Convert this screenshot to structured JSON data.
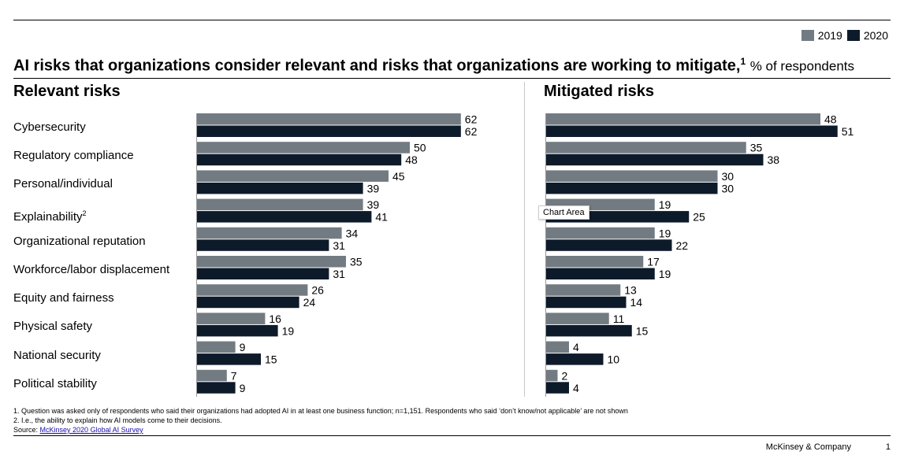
{
  "title": "AI risks that organizations consider relevant and risks that organizations are working to mitigate,",
  "title_sup": "1",
  "title_unit": "% of respondents",
  "legend": [
    {
      "label": "2019",
      "color": "#737b82"
    },
    {
      "label": "2020",
      "color": "#0d1a2a"
    }
  ],
  "panels": {
    "left": {
      "title": "Relevant risks"
    },
    "right": {
      "title": "Mitigated risks"
    }
  },
  "categories": [
    {
      "label": "Cybersecurity",
      "sup": ""
    },
    {
      "label": "Regulatory compliance",
      "sup": ""
    },
    {
      "label": "Personal/individual",
      "sup": ""
    },
    {
      "label": "Explainability",
      "sup": "2"
    },
    {
      "label": "Organizational reputation",
      "sup": ""
    },
    {
      "label": "Workforce/labor displacement",
      "sup": ""
    },
    {
      "label": "Equity and fairness",
      "sup": ""
    },
    {
      "label": "Physical safety",
      "sup": ""
    },
    {
      "label": "National security",
      "sup": ""
    },
    {
      "label": "Political stability",
      "sup": ""
    }
  ],
  "chart_data": [
    {
      "type": "bar",
      "orientation": "horizontal",
      "title": "Relevant risks",
      "categories": [
        "Cybersecurity",
        "Regulatory compliance",
        "Personal/individual",
        "Explainability",
        "Organizational reputation",
        "Workforce/labor displacement",
        "Equity and fairness",
        "Physical safety",
        "National security",
        "Political stability"
      ],
      "series": [
        {
          "name": "2019",
          "values": [
            62,
            50,
            45,
            39,
            34,
            35,
            26,
            16,
            9,
            7
          ]
        },
        {
          "name": "2020",
          "values": [
            62,
            48,
            39,
            41,
            31,
            31,
            24,
            19,
            15,
            9
          ]
        }
      ],
      "legend": "top-right"
    },
    {
      "type": "bar",
      "orientation": "horizontal",
      "title": "Mitigated risks",
      "categories": [
        "Cybersecurity",
        "Regulatory compliance",
        "Personal/individual",
        "Explainability",
        "Organizational reputation",
        "Workforce/labor displacement",
        "Equity and fairness",
        "Physical safety",
        "National security",
        "Political stability"
      ],
      "series": [
        {
          "name": "2019",
          "values": [
            48,
            35,
            30,
            19,
            19,
            17,
            13,
            11,
            4,
            2
          ]
        },
        {
          "name": "2020",
          "values": [
            51,
            38,
            30,
            25,
            22,
            19,
            14,
            15,
            10,
            4
          ]
        }
      ],
      "legend": "top-right"
    }
  ],
  "tooltip": "Chart Area",
  "footnotes": {
    "note1": "1. Question was asked only of respondents who said their organizations had adopted AI in at least one business function; n=1,151. Respondents who said ‘don’t know/not applicable’ are not shown",
    "note2": "2. I.e., the ability to explain how AI models come to their decisions.",
    "source_label": "Source: ",
    "source_link": "McKinsey 2020 Global AI Survey"
  },
  "brand": "McKinsey & Company",
  "page_number": "1"
}
